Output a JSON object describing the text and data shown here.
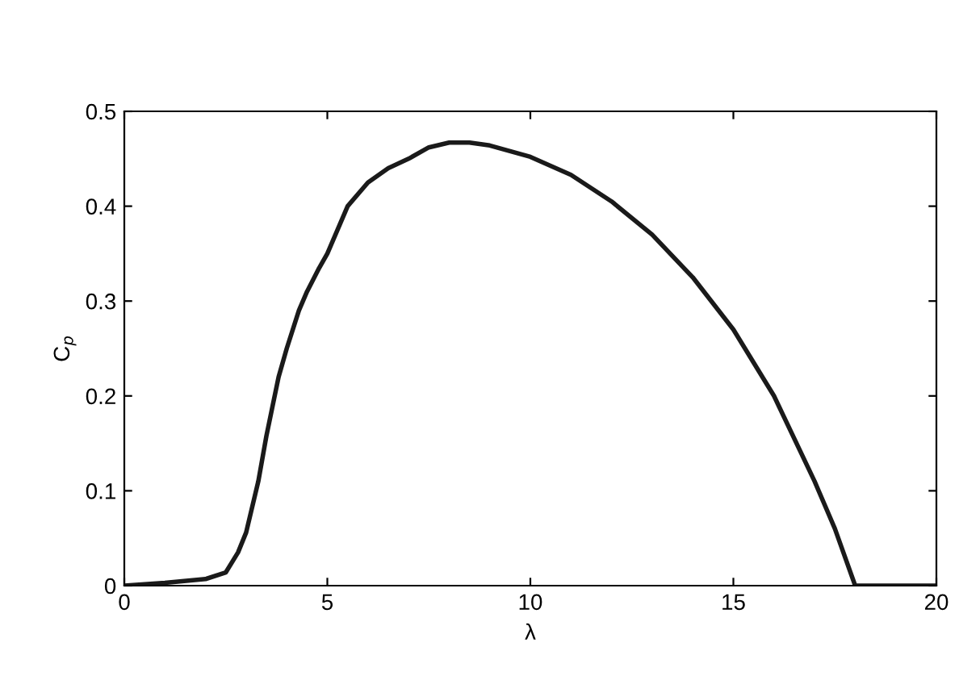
{
  "chart_data": {
    "type": "line",
    "xlabel": "λ",
    "ylabel": "C$_{p}$",
    "series": [
      {
        "color": "#1a1a1a",
        "x": [
          0,
          1,
          2,
          2.5,
          2.8,
          3,
          3.3,
          3.5,
          3.8,
          4,
          4.3,
          4.5,
          4.8,
          5,
          5.3,
          5.5,
          6,
          6.5,
          7,
          7.5,
          8,
          8.5,
          9,
          10,
          11,
          12,
          13,
          14,
          15,
          16,
          17,
          17.5,
          18,
          19,
          20
        ],
        "values": [
          0,
          0.003,
          0.007,
          0.014,
          0.035,
          0.056,
          0.11,
          0.158,
          0.22,
          0.25,
          0.29,
          0.31,
          0.335,
          0.35,
          0.38,
          0.4,
          0.425,
          0.44,
          0.45,
          0.462,
          0.467,
          0.467,
          0.464,
          0.452,
          0.433,
          0.405,
          0.37,
          0.325,
          0.27,
          0.2,
          0.11,
          0.06,
          0.0,
          0.0,
          0.0
        ]
      }
    ],
    "xlim": [
      0,
      20
    ],
    "ylim": [
      0,
      0.5
    ],
    "xticks": [
      0,
      5,
      10,
      15,
      20
    ],
    "yticks": [
      0,
      0.1,
      0.2,
      0.3,
      0.4,
      0.5
    ],
    "grid": false,
    "legend": false,
    "line_style": "solid",
    "marker": "none"
  }
}
